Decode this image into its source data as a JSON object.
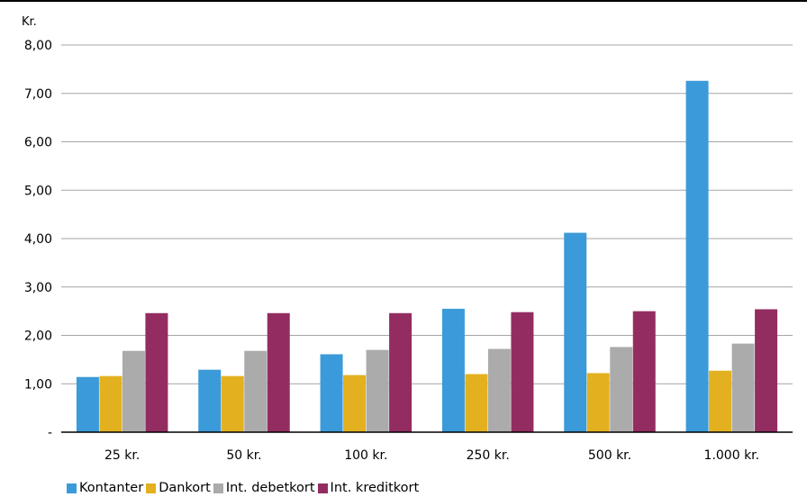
{
  "chart_data": {
    "type": "bar",
    "y_unit_label": "Kr.",
    "categories": [
      "25 kr.",
      "50 kr.",
      "100 kr.",
      "250 kr.",
      "500 kr.",
      "1.000 kr."
    ],
    "ylim": [
      0,
      8
    ],
    "yticks": [
      0,
      1,
      2,
      3,
      4,
      5,
      6,
      7,
      8
    ],
    "ytick_labels": [
      "-",
      "1,00",
      "2,00",
      "3,00",
      "4,00",
      "5,00",
      "6,00",
      "7,00",
      "8,00"
    ],
    "grid": true,
    "legend_position": "bottom-left",
    "series": [
      {
        "name": "Kontanter",
        "color": "#3b9ad9",
        "values": [
          1.14,
          1.29,
          1.61,
          2.55,
          4.12,
          7.26
        ]
      },
      {
        "name": "Dankort",
        "color": "#e3b11f",
        "values": [
          1.16,
          1.16,
          1.18,
          1.2,
          1.22,
          1.27
        ]
      },
      {
        "name": "Int. debetkort",
        "color": "#ababab",
        "values": [
          1.68,
          1.68,
          1.7,
          1.72,
          1.76,
          1.83
        ]
      },
      {
        "name": "Int. kreditkort",
        "color": "#932d61",
        "values": [
          2.46,
          2.46,
          2.46,
          2.48,
          2.5,
          2.54
        ]
      }
    ]
  }
}
